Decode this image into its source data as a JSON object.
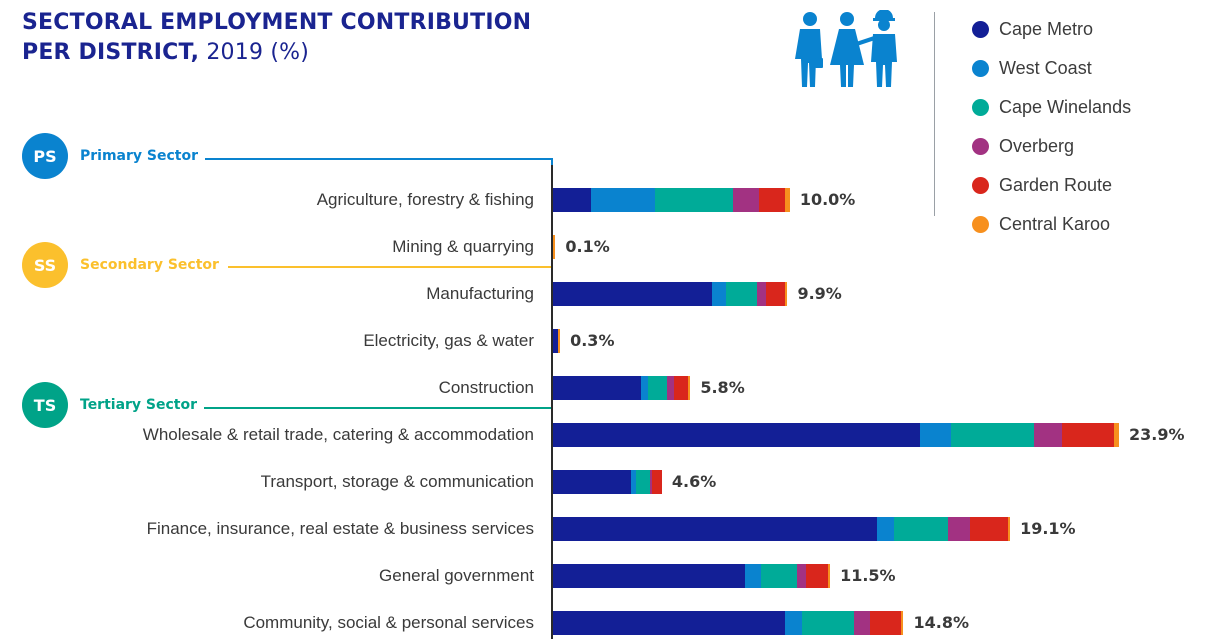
{
  "header": {
    "title_line1": "SECTORAL EMPLOYMENT CONTRIBUTION",
    "title_line2_bold": "PER DISTRICT,",
    "title_line2_rest": " 2019 (%)"
  },
  "legend": [
    {
      "label": "Cape Metro",
      "color": "#131f96"
    },
    {
      "label": "West Coast",
      "color": "#0a83cf"
    },
    {
      "label": "Cape Winelands",
      "color": "#00ab98"
    },
    {
      "label": "Overberg",
      "color": "#a23282"
    },
    {
      "label": "Garden Route",
      "color": "#d9261c"
    },
    {
      "label": "Central Karoo",
      "color": "#f7901e"
    }
  ],
  "sectors": [
    {
      "badge": "PS",
      "label": "Primary Sector",
      "color": "#0a83cf"
    },
    {
      "badge": "SS",
      "label": "Secondary Sector",
      "color": "#fbc02d"
    },
    {
      "badge": "TS",
      "label": "Tertiary Sector",
      "color": "#00a388"
    }
  ],
  "chart_data": {
    "type": "bar",
    "orientation": "horizontal",
    "stacked": true,
    "title": "SECTORAL EMPLOYMENT CONTRIBUTION PER DISTRICT, 2019 (%)",
    "categories": [
      "Agriculture, forestry & fishing",
      "Mining & quarrying",
      "Manufacturing",
      "Electricity, gas & water",
      "Construction",
      "Wholesale & retail trade, catering & accommodation",
      "Transport, storage & communication",
      "Finance, insurance, real estate & business services",
      "General government",
      "Community, social & personal services"
    ],
    "totals": [
      10.0,
      0.1,
      9.9,
      0.3,
      5.8,
      23.9,
      4.6,
      19.1,
      11.5,
      14.8
    ],
    "total_labels": [
      "10.0%",
      "0.1%",
      "9.9%",
      "0.3%",
      "5.8%",
      "23.9%",
      "4.6%",
      "19.1%",
      "11.5%",
      "14.8%"
    ],
    "series": [
      {
        "name": "Cape Metro",
        "values": [
          1.6,
          0.0,
          6.7,
          0.2,
          3.7,
          15.5,
          3.3,
          13.7,
          8.1,
          9.8
        ]
      },
      {
        "name": "West Coast",
        "values": [
          2.7,
          0.0,
          0.6,
          0.0,
          0.3,
          1.3,
          0.2,
          0.7,
          0.7,
          0.7
        ]
      },
      {
        "name": "Cape Winelands",
        "values": [
          3.3,
          0.0,
          1.3,
          0.0,
          0.8,
          3.5,
          0.6,
          2.3,
          1.5,
          2.2
        ]
      },
      {
        "name": "Overberg",
        "values": [
          1.1,
          0.0,
          0.4,
          0.0,
          0.3,
          1.2,
          0.1,
          0.9,
          0.4,
          0.7
        ]
      },
      {
        "name": "Garden Route",
        "values": [
          1.1,
          0.0,
          0.8,
          0.0,
          0.6,
          2.2,
          0.4,
          1.6,
          0.9,
          1.3
        ]
      },
      {
        "name": "Central Karoo",
        "values": [
          0.2,
          0.1,
          0.1,
          0.1,
          0.1,
          0.2,
          0.0,
          0.1,
          0.1,
          0.1
        ]
      }
    ]
  }
}
